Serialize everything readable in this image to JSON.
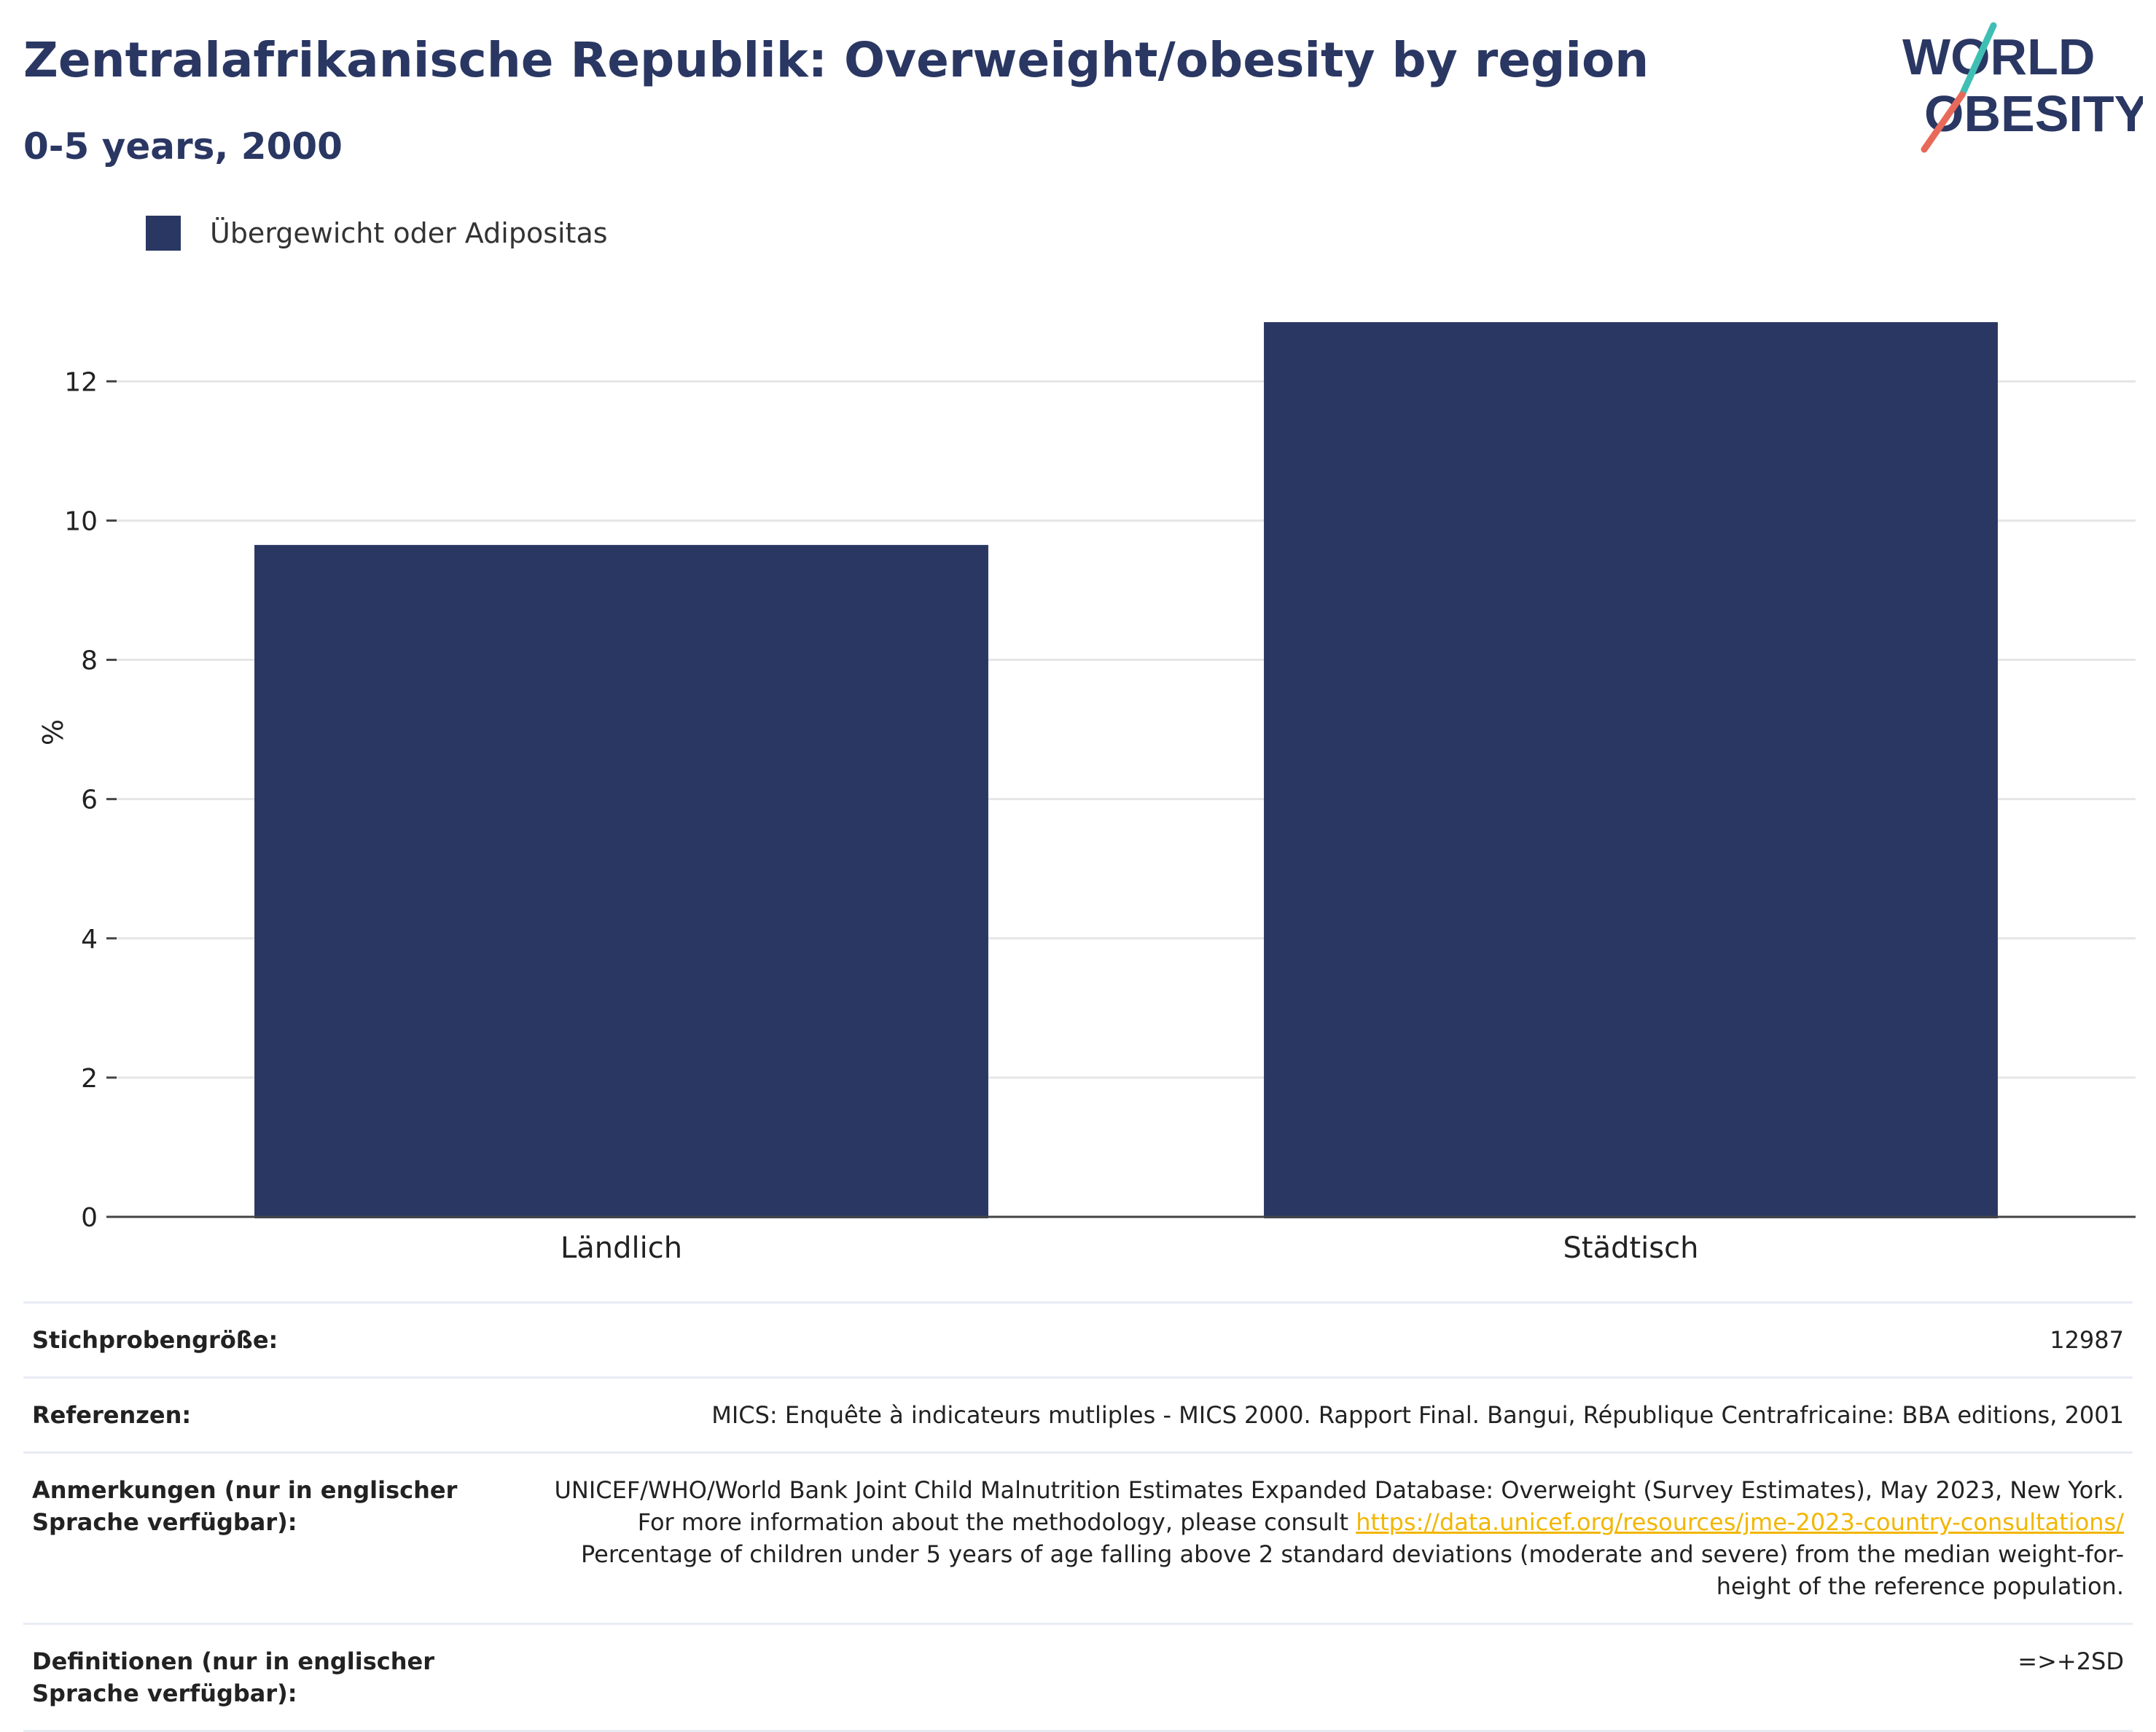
{
  "header": {
    "title": "Zentralafrikanische Republik: Overweight/obesity by region",
    "subtitle": "0-5 years, 2000"
  },
  "logo": {
    "line1": "WORLD",
    "line2": "OBESITY",
    "accent_teal": "#3fbfb4",
    "accent_red": "#e8695a"
  },
  "colors": {
    "bar": "#2a3763",
    "grid": "#e6e6e6",
    "axis": "#444444"
  },
  "chart_data": {
    "type": "bar",
    "categories": [
      "Ländlich",
      "Städtisch"
    ],
    "series": [
      {
        "name": "Übergewicht oder Adipositas",
        "values": [
          9.65,
          12.85
        ]
      }
    ],
    "ylabel": "%",
    "yticks": [
      0,
      2,
      4,
      6,
      8,
      10,
      12
    ],
    "ylim": [
      0,
      13.5
    ],
    "grid": true,
    "legend": "top-left"
  },
  "info": {
    "sample_label": "Stichprobengröße:",
    "sample_value": "12987",
    "refs_label": "Referenzen:",
    "refs_value": "MICS: Enquête à indicateurs mutliples - MICS 2000. Rapport Final. Bangui, République Centrafricaine: BBA editions, 2001",
    "notes_label": "Anmerkungen (nur in englischer Sprache verfügbar):",
    "notes_text1": "UNICEF/WHO/World Bank Joint Child Malnutrition Estimates Expanded Database: Overweight (Survey Estimates), May 2023, New York. For more information about the methodology, please consult ",
    "notes_link": "https://data.unicef.org/resources/jme-2023-country-consultations/",
    "notes_text2": "Percentage of children under 5 years of age falling above 2 standard deviations (moderate and severe) from the median weight-for-height of the reference population.",
    "defs_label": "Definitionen (nur in englischer Sprache verfügbar):",
    "defs_value": "=>+2SD"
  }
}
